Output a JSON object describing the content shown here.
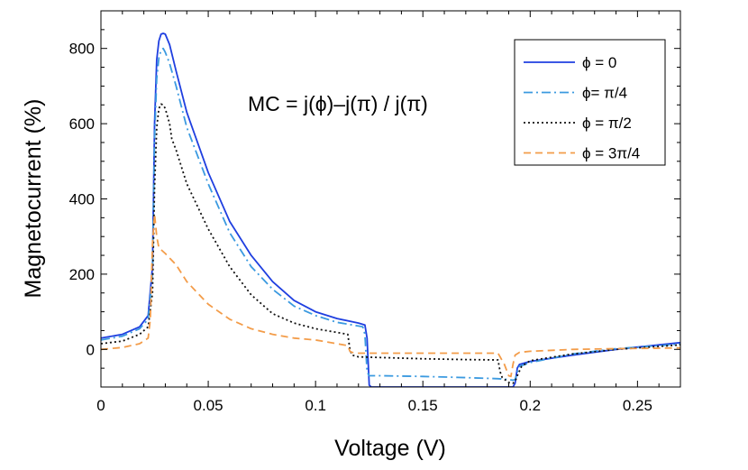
{
  "chart_data": {
    "type": "line",
    "xlabel": "Voltage (V)",
    "ylabel": "Magnetocurrent (%)",
    "annotation": "MC = j(ϕ)–j(π) / j(π)",
    "xlim": [
      0,
      0.27
    ],
    "ylim": [
      -100,
      900
    ],
    "xticks": [
      0,
      0.05,
      0.1,
      0.15,
      0.2,
      0.25
    ],
    "xtick_labels": [
      "0",
      "0.05",
      "0.1",
      "0.15",
      "0.2",
      "0.25"
    ],
    "yticks": [
      0,
      200,
      400,
      600,
      800
    ],
    "ytick_labels": [
      "0",
      "200",
      "400",
      "600",
      "800"
    ],
    "legend_position": "top-right",
    "series": [
      {
        "name": "ϕ = 0",
        "color": "#1f3fe0",
        "style": "solid",
        "x": [
          0,
          0.01,
          0.018,
          0.022,
          0.024,
          0.025,
          0.026,
          0.027,
          0.028,
          0.029,
          0.03,
          0.032,
          0.035,
          0.04,
          0.05,
          0.06,
          0.07,
          0.08,
          0.09,
          0.1,
          0.11,
          0.12,
          0.123,
          0.124,
          0.125,
          0.126,
          0.13,
          0.15,
          0.17,
          0.19,
          0.192,
          0.193,
          0.194,
          0.195,
          0.2,
          0.22,
          0.24,
          0.26,
          0.27
        ],
        "y": [
          30,
          40,
          60,
          90,
          220,
          600,
          770,
          820,
          838,
          840,
          838,
          810,
          740,
          630,
          470,
          340,
          250,
          180,
          130,
          100,
          82,
          70,
          65,
          30,
          -95,
          -100,
          -100,
          -100,
          -100,
          -100,
          -100,
          -90,
          -50,
          -40,
          -32,
          -15,
          0,
          12,
          18
        ]
      },
      {
        "name": "ϕ= π/4",
        "color": "#3b9ae0",
        "style": "dashdot",
        "x": [
          0,
          0.01,
          0.018,
          0.022,
          0.024,
          0.025,
          0.026,
          0.027,
          0.028,
          0.029,
          0.03,
          0.032,
          0.035,
          0.04,
          0.05,
          0.06,
          0.07,
          0.08,
          0.09,
          0.1,
          0.11,
          0.12,
          0.122,
          0.123,
          0.124,
          0.125,
          0.13,
          0.15,
          0.17,
          0.185,
          0.19,
          0.192,
          0.193,
          0.194,
          0.195,
          0.2,
          0.22,
          0.24,
          0.26,
          0.27
        ],
        "y": [
          25,
          35,
          55,
          80,
          200,
          560,
          720,
          775,
          795,
          800,
          790,
          760,
          700,
          590,
          440,
          310,
          220,
          160,
          115,
          90,
          72,
          62,
          60,
          40,
          -60,
          -70,
          -70,
          -72,
          -75,
          -78,
          -80,
          -82,
          -80,
          -60,
          -45,
          -35,
          -12,
          2,
          10,
          14
        ]
      },
      {
        "name": "ϕ = π/2",
        "color": "#111111",
        "style": "dotted",
        "x": [
          0,
          0.01,
          0.018,
          0.022,
          0.024,
          0.025,
          0.026,
          0.027,
          0.028,
          0.029,
          0.03,
          0.031,
          0.032,
          0.033,
          0.035,
          0.04,
          0.05,
          0.06,
          0.07,
          0.08,
          0.09,
          0.1,
          0.11,
          0.115,
          0.116,
          0.117,
          0.12,
          0.15,
          0.17,
          0.185,
          0.186,
          0.187,
          0.19,
          0.192,
          0.193,
          0.194,
          0.196,
          0.2,
          0.22,
          0.24,
          0.26,
          0.27
        ],
        "y": [
          15,
          22,
          40,
          60,
          150,
          430,
          590,
          640,
          652,
          650,
          640,
          620,
          600,
          560,
          530,
          440,
          320,
          220,
          145,
          95,
          70,
          55,
          45,
          40,
          0,
          -15,
          -20,
          -25,
          -27,
          -28,
          -60,
          -75,
          -88,
          -90,
          -85,
          -70,
          -45,
          -30,
          -12,
          0,
          8,
          12
        ]
      },
      {
        "name": "ϕ = 3π/4",
        "color": "#f39c49",
        "style": "dashed",
        "x": [
          0,
          0.01,
          0.018,
          0.022,
          0.023,
          0.024,
          0.025,
          0.026,
          0.027,
          0.028,
          0.03,
          0.035,
          0.04,
          0.05,
          0.06,
          0.07,
          0.08,
          0.09,
          0.1,
          0.11,
          0.115,
          0.116,
          0.117,
          0.12,
          0.15,
          0.17,
          0.185,
          0.188,
          0.19,
          0.191,
          0.192,
          0.193,
          0.195,
          0.2,
          0.22,
          0.24,
          0.26,
          0.27
        ],
        "y": [
          0,
          5,
          15,
          30,
          80,
          280,
          360,
          300,
          270,
          265,
          255,
          225,
          180,
          120,
          80,
          55,
          40,
          30,
          25,
          15,
          10,
          -5,
          -8,
          -10,
          -10,
          -10,
          -10,
          -40,
          -70,
          -72,
          -40,
          -15,
          -8,
          -5,
          0,
          2,
          3,
          4
        ]
      }
    ]
  }
}
